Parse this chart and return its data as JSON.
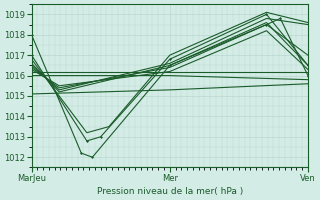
{
  "bg_color": "#d4ece6",
  "grid_color": "#b8d8d0",
  "line_color": "#1a5c2a",
  "title": "Pression niveau de la mer( hPa )",
  "xtick_labels": [
    "MarJeu",
    "Mer",
    "Ven"
  ],
  "xtick_positions": [
    0.0,
    0.5,
    1.0
  ],
  "ylim": [
    1011.5,
    1019.5
  ],
  "yticks": [
    1012,
    1013,
    1014,
    1015,
    1016,
    1017,
    1018,
    1019
  ],
  "series": [
    {
      "x": [
        0.0,
        0.18,
        0.22,
        0.5,
        0.85,
        0.9,
        1.0
      ],
      "y": [
        1018.0,
        1012.2,
        1012.0,
        1016.5,
        1018.5,
        1018.8,
        1016.0
      ],
      "marker": true
    },
    {
      "x": [
        0.0,
        0.2,
        0.25,
        0.5,
        0.85,
        1.0
      ],
      "y": [
        1017.0,
        1012.8,
        1013.0,
        1016.8,
        1019.0,
        1016.5
      ],
      "marker": true
    },
    {
      "x": [
        0.0,
        0.2,
        0.28,
        0.5,
        0.85,
        1.0
      ],
      "y": [
        1016.8,
        1013.2,
        1013.5,
        1017.0,
        1019.1,
        1018.6
      ],
      "marker": false
    },
    {
      "x": [
        0.0,
        0.1,
        0.5,
        0.85,
        1.0
      ],
      "y": [
        1016.6,
        1015.2,
        1016.5,
        1018.6,
        1016.5
      ],
      "marker": false
    },
    {
      "x": [
        0.0,
        0.1,
        0.5,
        0.85,
        1.0
      ],
      "y": [
        1016.5,
        1015.3,
        1016.6,
        1018.8,
        1018.5
      ],
      "marker": false
    },
    {
      "x": [
        0.0,
        0.1,
        0.5,
        0.85,
        1.0
      ],
      "y": [
        1016.4,
        1015.4,
        1016.4,
        1018.5,
        1017.0
      ],
      "marker": false
    },
    {
      "x": [
        0.0,
        0.1,
        0.5,
        0.85,
        1.0
      ],
      "y": [
        1016.3,
        1015.5,
        1016.2,
        1018.2,
        1016.3
      ],
      "marker": false
    },
    {
      "x": [
        0.0,
        0.5,
        1.0
      ],
      "y": [
        1016.2,
        1016.2,
        1016.2
      ],
      "marker": false
    },
    {
      "x": [
        0.0,
        0.5,
        1.0
      ],
      "y": [
        1016.0,
        1016.0,
        1015.8
      ],
      "marker": false
    },
    {
      "x": [
        0.0,
        0.5,
        1.0
      ],
      "y": [
        1015.1,
        1015.3,
        1015.6
      ],
      "marker": false
    }
  ]
}
